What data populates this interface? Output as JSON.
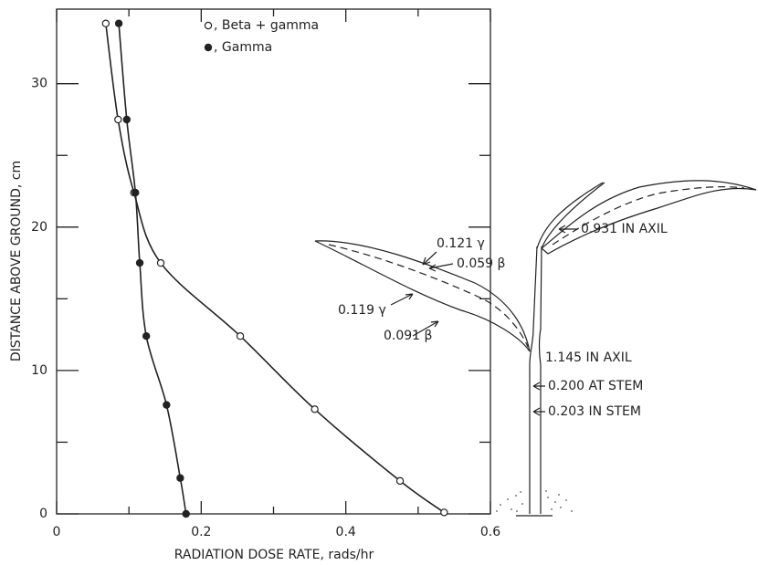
{
  "chart_data": {
    "type": "scatter",
    "xlabel": "RADIATION DOSE RATE, rads/hr",
    "ylabel": "DISTANCE ABOVE GROUND, cm",
    "xlim": [
      0,
      0.6
    ],
    "ylim": [
      0,
      35.2
    ],
    "xticks": [
      0,
      0.2,
      0.4,
      0.6
    ],
    "yticks": [
      0,
      10,
      20,
      30
    ],
    "xminor_ticks": [
      0.1,
      0.3,
      0.5
    ],
    "yminor_ticks": [
      5,
      15,
      25
    ],
    "series": [
      {
        "name": ", Beta + gamma",
        "color": "#222222",
        "marker": "open",
        "x": [
          0.068,
          0.085,
          0.107,
          0.144,
          0.254,
          0.357,
          0.475,
          0.536
        ],
        "values": [
          34.2,
          27.5,
          22.4,
          17.5,
          12.4,
          7.3,
          2.3,
          0.1
        ]
      },
      {
        "name": ", Gamma",
        "color": "#222222",
        "marker": "filled",
        "x": [
          0.086,
          0.097,
          0.109,
          0.115,
          0.124,
          0.152,
          0.171,
          0.179
        ],
        "values": [
          34.2,
          27.5,
          22.4,
          17.5,
          12.4,
          7.6,
          2.5,
          0
        ]
      }
    ],
    "annotations": [
      "0.121 γ",
      "0.059 β",
      "0.119 γ",
      "0.091 β",
      "0.931 IN AXIL",
      "1.145 IN AXIL",
      "0.200 AT STEM",
      "0.203 IN STEM"
    ]
  }
}
